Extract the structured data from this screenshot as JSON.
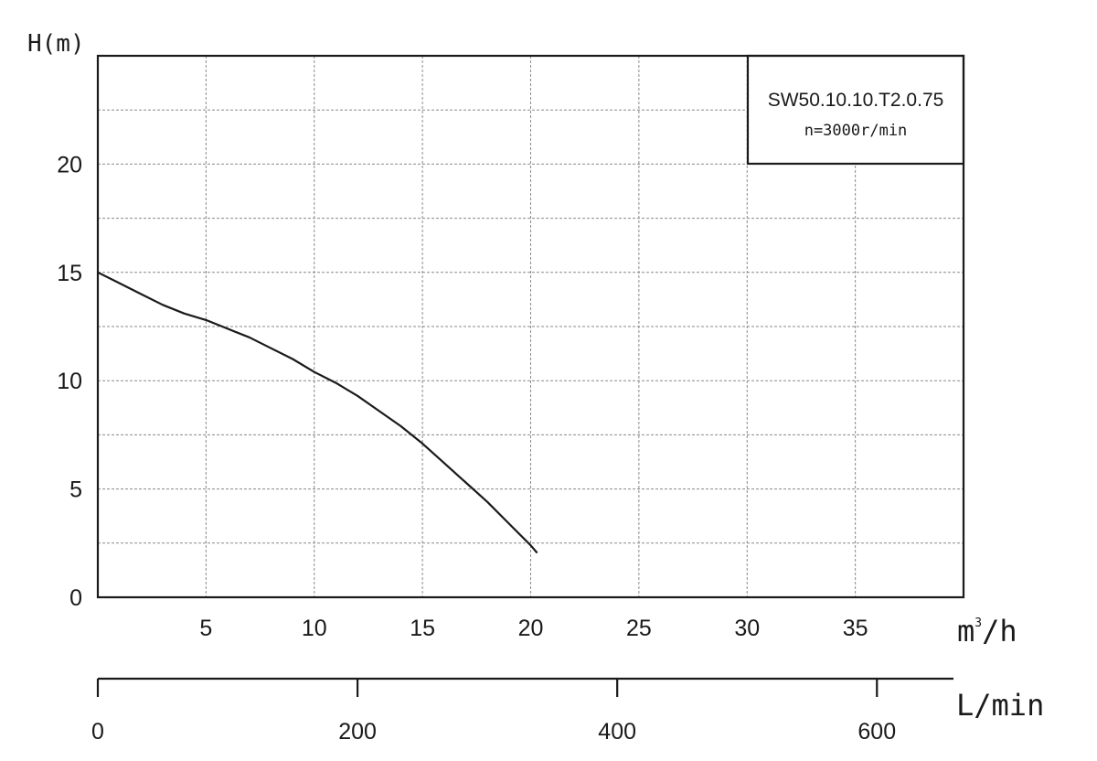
{
  "chart_data": {
    "type": "line",
    "title": "",
    "ylabel": "H(m)",
    "xlabel": "m³/h",
    "xlabel_secondary": "L/min",
    "legend_box": {
      "model": "SW50.10.10.T2.0.75",
      "speed": "n=3000r/min"
    },
    "xlim": [
      0,
      40
    ],
    "ylim": [
      0,
      25
    ],
    "x_ticks": [
      5,
      10,
      15,
      20,
      25,
      30,
      35
    ],
    "x_tick_labels": [
      "5",
      "10",
      "15",
      "20",
      "25",
      "30",
      "35"
    ],
    "y_ticks": [
      0,
      5,
      10,
      15,
      20
    ],
    "y_tick_labels": [
      "0",
      "5",
      "10",
      "15",
      "20"
    ],
    "secondary_axis": {
      "ticks": [
        0,
        200,
        400,
        600
      ],
      "tick_labels": [
        "0",
        "200",
        "400",
        "600"
      ],
      "lim": [
        0,
        666.7
      ]
    },
    "grid": true,
    "series": [
      {
        "x": [
          0,
          1,
          2,
          3,
          4,
          5,
          6,
          7,
          8,
          9,
          10,
          11,
          12,
          13,
          14,
          15,
          16,
          17,
          18,
          19,
          20,
          20.3
        ],
        "y": [
          15,
          14.5,
          14.0,
          13.5,
          13.1,
          12.8,
          12.4,
          12.0,
          11.5,
          11.0,
          10.4,
          9.9,
          9.3,
          8.6,
          7.9,
          7.1,
          6.2,
          5.3,
          4.4,
          3.4,
          2.4,
          2.05
        ]
      }
    ]
  }
}
